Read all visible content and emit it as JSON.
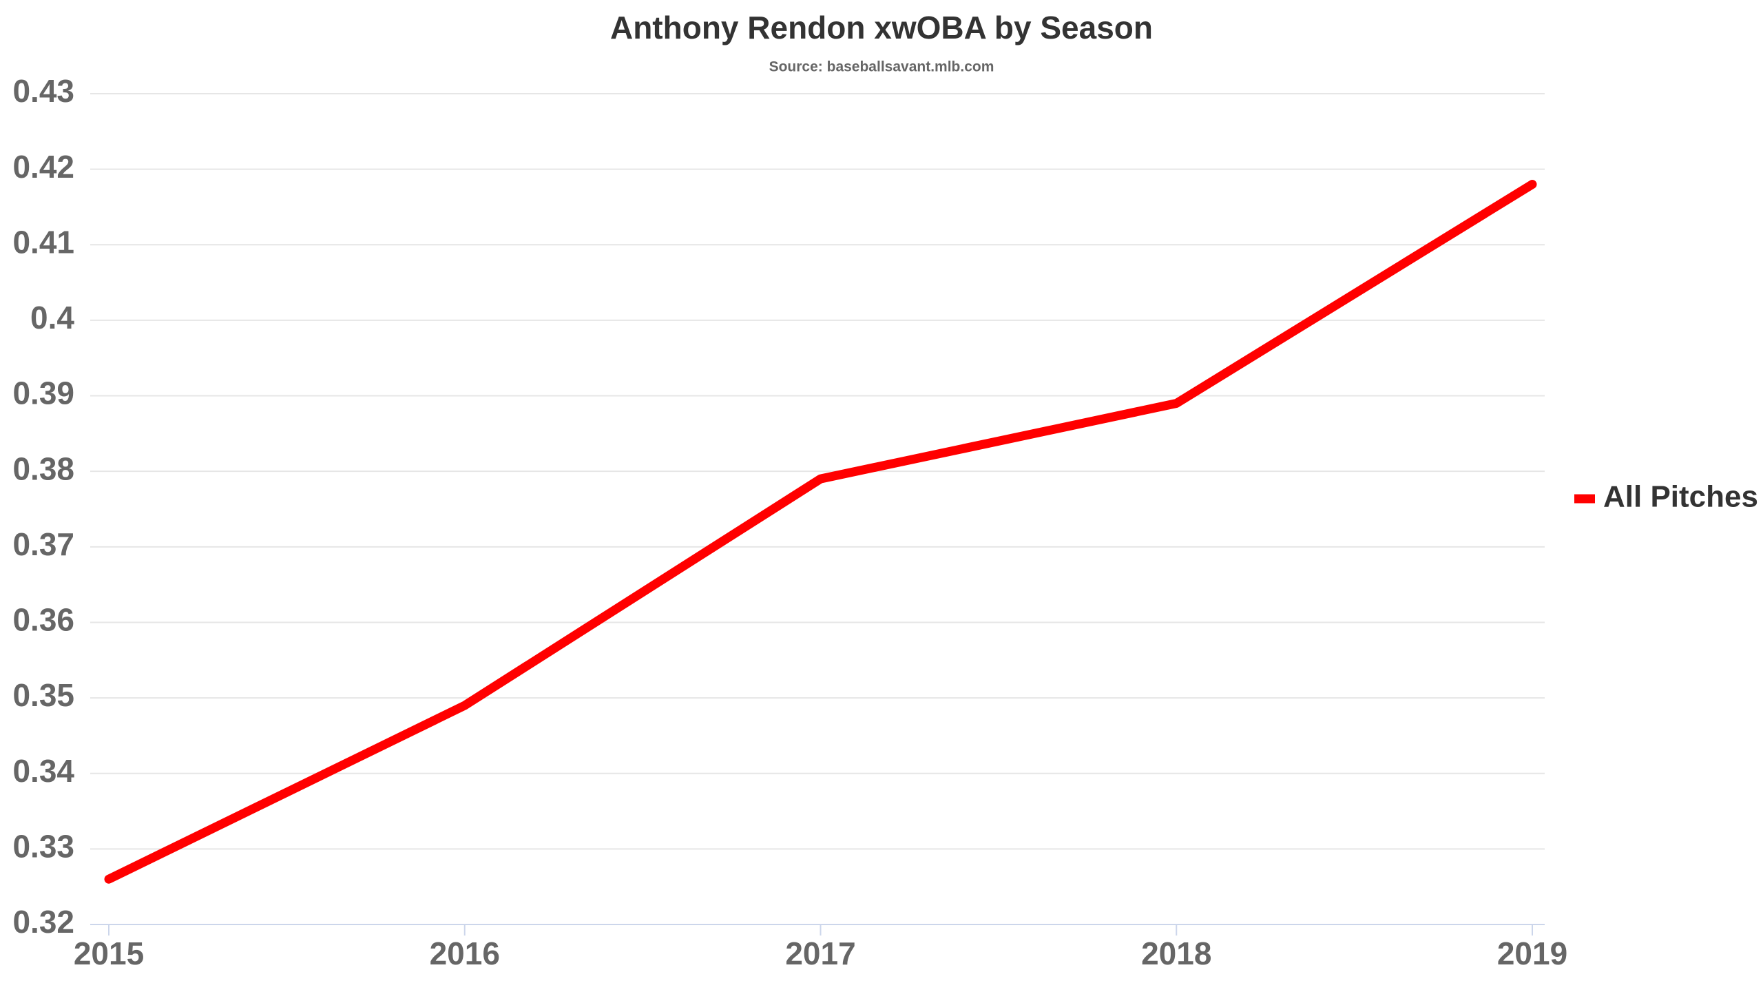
{
  "chart_data": {
    "type": "line",
    "title": "Anthony Rendon xwOBA by Season",
    "subtitle": "Source: baseballsavant.mlb.com",
    "categories": [
      "2015",
      "2016",
      "2017",
      "2018",
      "2019"
    ],
    "series": [
      {
        "name": "All Pitches",
        "color": "#ff0000",
        "values": [
          0.326,
          0.349,
          0.379,
          0.389,
          0.418
        ]
      }
    ],
    "ylim": [
      0.32,
      0.43
    ],
    "yticks": [
      0.32,
      0.33,
      0.34,
      0.35,
      0.36,
      0.37,
      0.38,
      0.39,
      0.4,
      0.41,
      0.42,
      0.43
    ],
    "grid": true,
    "legend": "right"
  }
}
